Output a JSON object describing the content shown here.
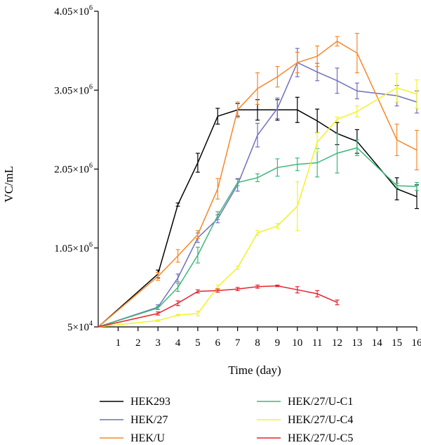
{
  "chart_data": {
    "type": "line",
    "xlabel": "Time (day)",
    "ylabel": "VC/mL",
    "xlim": [
      0,
      16
    ],
    "ylim": [
      50000,
      4050000
    ],
    "x_ticks": [
      1,
      2,
      3,
      4,
      5,
      6,
      7,
      8,
      9,
      10,
      11,
      12,
      13,
      14,
      15,
      16
    ],
    "y_ticks": [
      {
        "value": 50000,
        "base": "5×10",
        "exp": "4"
      },
      {
        "value": 1050000,
        "base": "1.05×10",
        "exp": "6"
      },
      {
        "value": 2050000,
        "base": "2.05×10",
        "exp": "6"
      },
      {
        "value": 3050000,
        "base": "3.05×10",
        "exp": "6"
      },
      {
        "value": 4050000,
        "base": "4.05×10",
        "exp": "6"
      }
    ],
    "legend_position": "bottom",
    "series": [
      {
        "name": "HEK293",
        "color": "#000000",
        "x": [
          0,
          3,
          4,
          5,
          6,
          7,
          8,
          9,
          10,
          11,
          12,
          13,
          15,
          16
        ],
        "y": [
          50000,
          720000,
          1600000,
          2130000,
          2720000,
          2800000,
          2800000,
          2800000,
          2800000,
          2660000,
          2500000,
          2400000,
          1800000,
          1700000
        ],
        "err": [
          0,
          50000,
          20000,
          120000,
          100000,
          80000,
          130000,
          130000,
          160000,
          150000,
          140000,
          150000,
          140000,
          150000
        ]
      },
      {
        "name": "HEK/27",
        "color": "#6f6fbf",
        "x": [
          0,
          3,
          4,
          5,
          6,
          7,
          8,
          9,
          10,
          11,
          12,
          13,
          15,
          16
        ],
        "y": [
          50000,
          300000,
          670000,
          1180000,
          1420000,
          1850000,
          2480000,
          2820000,
          3400000,
          3280000,
          3170000,
          3040000,
          2980000,
          2900000
        ],
        "err": [
          0,
          30000,
          50000,
          60000,
          50000,
          80000,
          150000,
          130000,
          180000,
          110000,
          160000,
          100000,
          130000,
          140000
        ]
      },
      {
        "name": "HEK/U",
        "color": "#f5882a",
        "x": [
          0,
          3,
          4,
          5,
          6,
          7,
          8,
          9,
          10,
          11,
          12,
          13,
          15,
          16
        ],
        "y": [
          50000,
          690000,
          950000,
          1220000,
          1800000,
          2800000,
          3070000,
          3220000,
          3400000,
          3480000,
          3670000,
          3520000,
          2420000,
          2290000
        ],
        "err": [
          0,
          50000,
          80000,
          50000,
          130000,
          100000,
          200000,
          130000,
          130000,
          130000,
          60000,
          250000,
          200000,
          250000
        ]
      },
      {
        "name": "HEK/27/U-C1",
        "color": "#3cb878",
        "x": [
          0,
          3,
          4,
          5,
          6,
          7,
          8,
          9,
          10,
          11,
          12,
          13,
          15,
          16
        ],
        "y": [
          50000,
          290000,
          550000,
          960000,
          1460000,
          1880000,
          1940000,
          2070000,
          2110000,
          2130000,
          2250000,
          2320000,
          1840000,
          1830000
        ],
        "err": [
          0,
          20000,
          50000,
          100000,
          50000,
          40000,
          50000,
          110000,
          80000,
          180000,
          250000,
          100000,
          30000,
          50000
        ]
      },
      {
        "name": "HEK/27/U-C4",
        "color": "#f2f22b",
        "x": [
          0,
          3,
          4,
          5,
          6,
          7,
          8,
          9,
          10,
          11,
          12,
          13,
          15,
          16
        ],
        "y": [
          50000,
          130000,
          200000,
          220000,
          560000,
          800000,
          1240000,
          1330000,
          1580000,
          2390000,
          2680000,
          2780000,
          3080000,
          3000000
        ],
        "err": [
          0,
          10000,
          10000,
          30000,
          20000,
          20000,
          30000,
          30000,
          310000,
          120000,
          30000,
          70000,
          180000,
          180000
        ]
      },
      {
        "name": "HEK/27/U-C5",
        "color": "#e8232f",
        "x": [
          0,
          3,
          4,
          5,
          6,
          7,
          8,
          9,
          10,
          11,
          12
        ],
        "y": [
          50000,
          220000,
          350000,
          500000,
          510000,
          530000,
          560000,
          570000,
          520000,
          470000,
          360000
        ],
        "err": [
          0,
          20000,
          30000,
          20000,
          20000,
          20000,
          20000,
          10000,
          40000,
          40000,
          30000
        ]
      }
    ]
  }
}
